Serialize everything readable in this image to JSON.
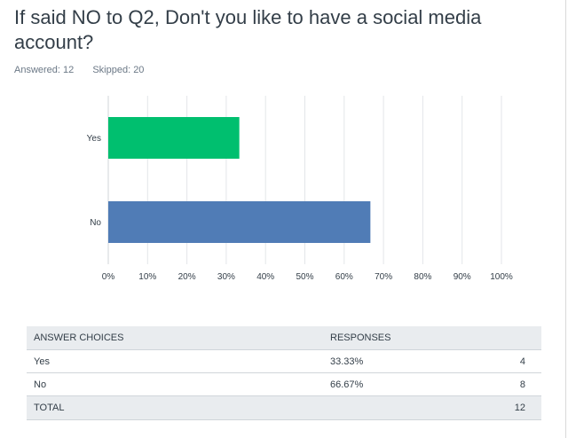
{
  "question": {
    "title": "If said NO to Q2, Don't you like to have a social media account?",
    "answered": "Answered: 12",
    "skipped": "Skipped: 20"
  },
  "chart_data": {
    "type": "bar",
    "orientation": "horizontal",
    "categories": [
      "Yes",
      "No"
    ],
    "values": [
      33.33,
      66.67
    ],
    "colors": [
      "#00bf6f",
      "#507cb6"
    ],
    "xlim": [
      0,
      100
    ],
    "xticks": [
      "0%",
      "10%",
      "20%",
      "30%",
      "40%",
      "50%",
      "60%",
      "70%",
      "80%",
      "90%",
      "100%"
    ],
    "grid": true
  },
  "table": {
    "headers": [
      "ANSWER CHOICES",
      "RESPONSES",
      ""
    ],
    "rows": [
      {
        "choice": "Yes",
        "percent": "33.33%",
        "count": "4"
      },
      {
        "choice": "No",
        "percent": "66.67%",
        "count": "8"
      }
    ],
    "total_label": "TOTAL",
    "total_count": "12"
  }
}
